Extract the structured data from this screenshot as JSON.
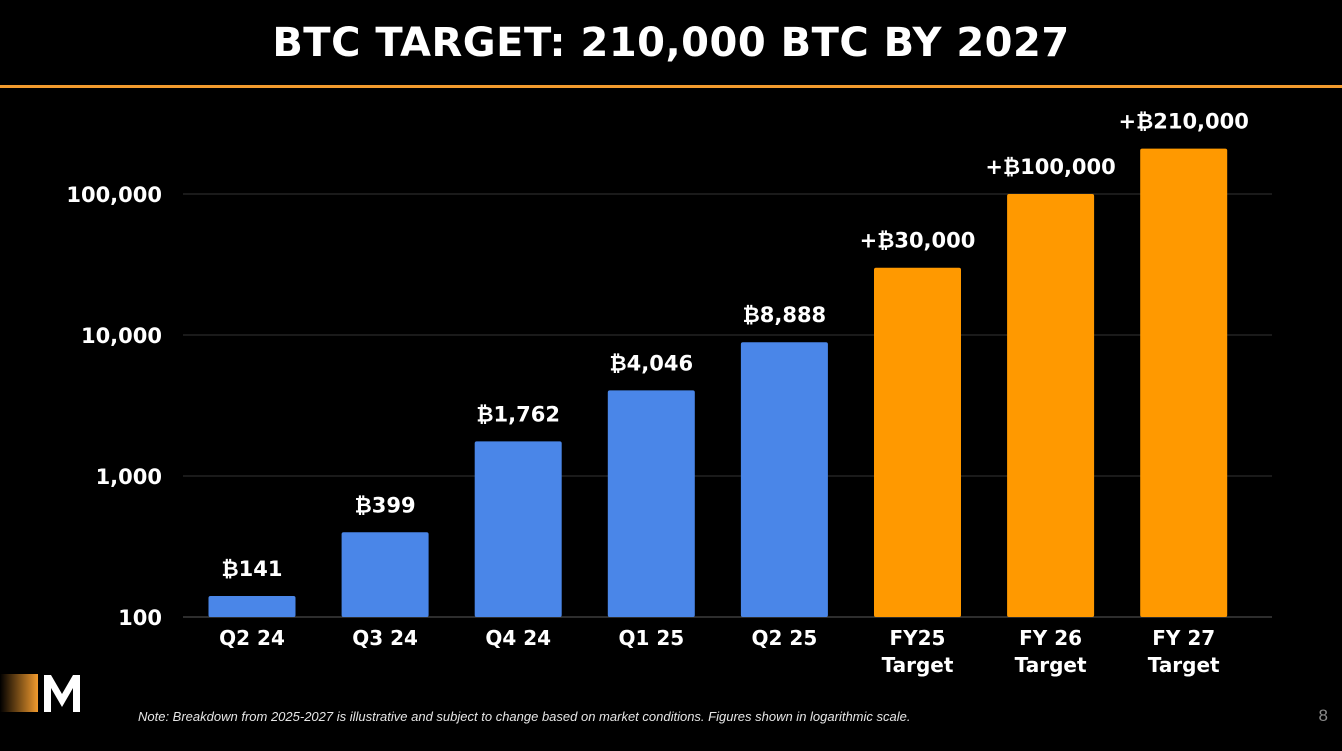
{
  "slide": {
    "title": "BTC TARGET: 210,000 BTC BY 2027",
    "footnote": "Note: Breakdown from 2025-2027 is illustrative and subject to change based on market conditions. Figures shown in logarithmic scale.",
    "page_number": "8"
  },
  "logo": {
    "icon": "m-logo-icon",
    "letter": "M"
  },
  "colors": {
    "actual": "#4a86e8",
    "target": "#ff9900",
    "accent": "#f29b2e",
    "background": "#000000"
  },
  "chart_data": {
    "type": "bar",
    "title": "",
    "xlabel": "",
    "ylabel": "",
    "yscale": "log",
    "ylim": [
      100,
      210000
    ],
    "yticks": [
      100,
      1000,
      10000,
      100000
    ],
    "ytick_labels": [
      "100",
      "1,000",
      "10,000",
      "100,000"
    ],
    "grid": true,
    "categories": [
      "Q2 24",
      "Q3 24",
      "Q4 24",
      "Q1 25",
      "Q2 25",
      "FY25\nTarget",
      "FY 26\nTarget",
      "FY 27\nTarget"
    ],
    "values": [
      141,
      399,
      1762,
      4046,
      8888,
      30000,
      100000,
      210000
    ],
    "data_labels": [
      "₿141",
      "₿399",
      "₿1,762",
      "₿4,046",
      "₿8,888",
      "+₿30,000",
      "+₿100,000",
      "+₿210,000"
    ],
    "bar_kind": [
      "actual",
      "actual",
      "actual",
      "actual",
      "actual",
      "target",
      "target",
      "target"
    ]
  }
}
